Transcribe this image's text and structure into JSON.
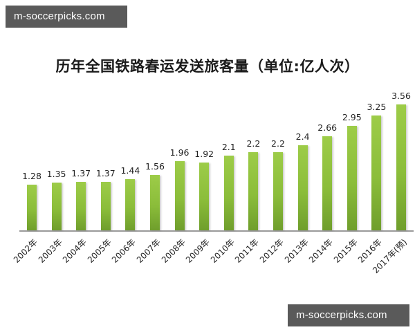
{
  "watermarks": {
    "top": "m-soccerpicks.com",
    "bottom": "m-soccerpicks.com"
  },
  "colors": {
    "bar": "#8bbd3a",
    "axis": "#9a9a9a",
    "watermark_bg": "#5a5a5a"
  },
  "chart_data": {
    "type": "bar",
    "title": "历年全国铁路春运发送旅客量（单位:亿人次）",
    "xlabel": "",
    "ylabel": "",
    "categories": [
      "2002年",
      "2003年",
      "2004年",
      "2005年",
      "2006年",
      "2007年",
      "2008年",
      "2009年",
      "2010年",
      "2011年",
      "2012年",
      "2013年",
      "2014年",
      "2015年",
      "2016年",
      "2017年(预)"
    ],
    "values": [
      1.28,
      1.35,
      1.37,
      1.37,
      1.44,
      1.56,
      1.96,
      1.92,
      2.1,
      2.2,
      2.2,
      2.4,
      2.66,
      2.95,
      3.25,
      3.56
    ],
    "value_labels": [
      "1.28",
      "1.35",
      "1.37",
      "1.37",
      "1.44",
      "1.56",
      "1.96",
      "1.92",
      "2.1",
      "2.2",
      "2.2",
      "2.4",
      "2.66",
      "2.95",
      "3.25",
      "3.56"
    ],
    "ylim": [
      0,
      4
    ],
    "grid": false,
    "legend": null,
    "y_axis_visible": false,
    "data_labels": true
  }
}
